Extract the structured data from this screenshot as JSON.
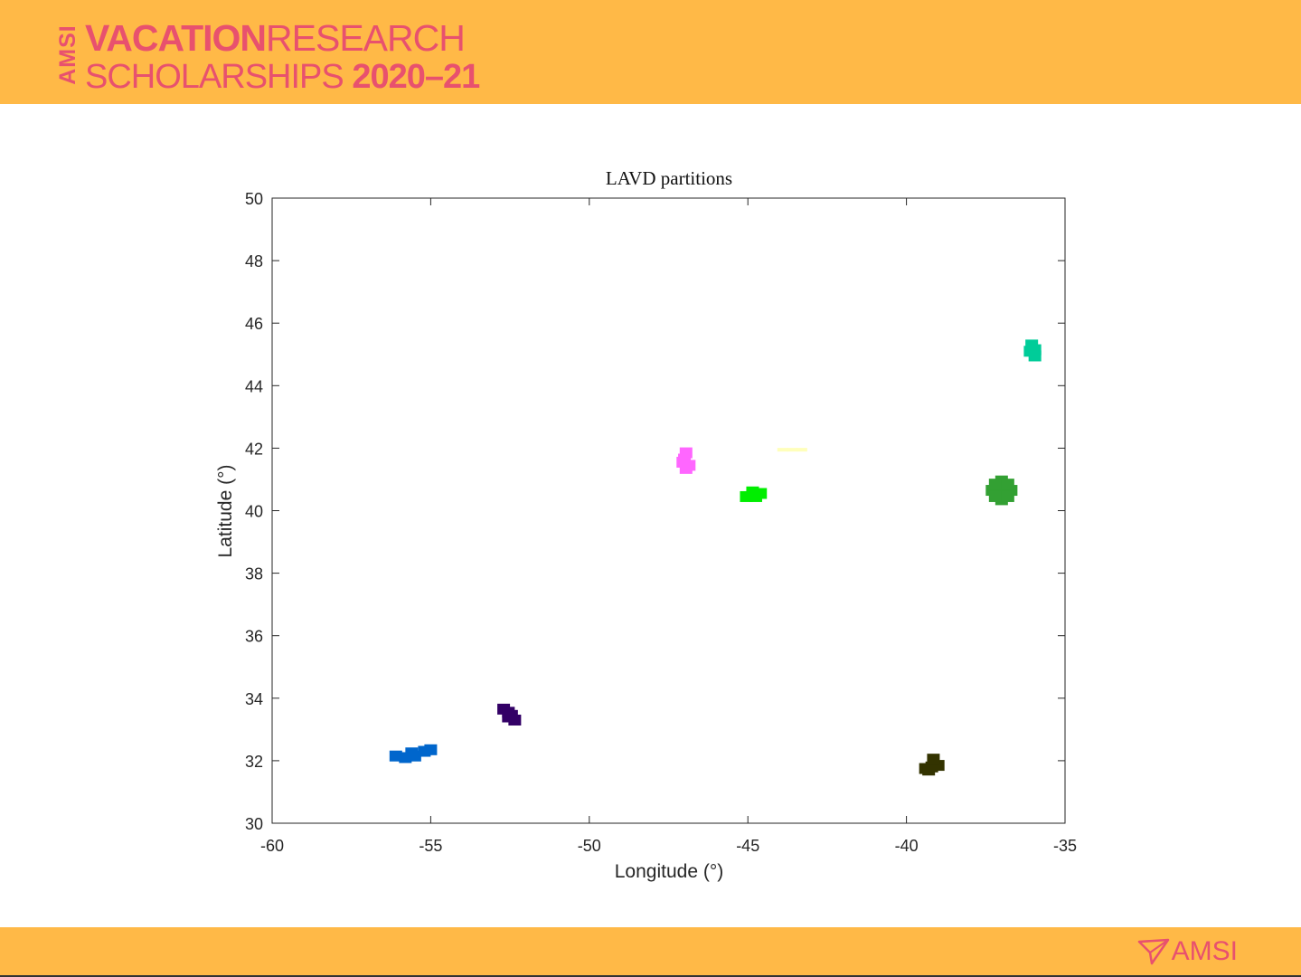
{
  "header": {
    "logo_amsi": "AMSI",
    "logo_word1": "VACATION",
    "logo_word2": "RESEARCH",
    "logo_word3": "SCHOLARSHIPS ",
    "logo_year": "2020–21",
    "brand_color": "#E8516E",
    "banner_color": "#FFB947"
  },
  "footer": {
    "logo_text": "AMSI",
    "logo_icon": "amsi-arrow-icon"
  },
  "chart_data": {
    "type": "scatter",
    "title": "LAVD partitions",
    "xlabel": "Longitude (°)",
    "ylabel": "Latitude (°)",
    "xlim": [
      -60,
      -35
    ],
    "ylim": [
      30,
      50
    ],
    "xticks": [
      -60,
      -55,
      -50,
      -45,
      -40,
      -35
    ],
    "yticks": [
      30,
      32,
      34,
      36,
      38,
      40,
      42,
      44,
      46,
      48,
      50
    ],
    "grid": false,
    "series": [
      {
        "color": "#0066CC",
        "points": [
          [
            -56.1,
            32.15
          ],
          [
            -55.8,
            32.1
          ],
          [
            -55.5,
            32.15
          ],
          [
            -55.2,
            32.3
          ],
          [
            -55.0,
            32.35
          ],
          [
            -55.6,
            32.25
          ]
        ]
      },
      {
        "color": "#330066",
        "points": [
          [
            -52.7,
            33.65
          ],
          [
            -52.55,
            33.55
          ],
          [
            -52.45,
            33.45
          ],
          [
            -52.35,
            33.3
          ],
          [
            -52.55,
            33.4
          ]
        ]
      },
      {
        "color": "#FF66FF",
        "points": [
          [
            -46.95,
            41.85
          ],
          [
            -47.0,
            41.65
          ],
          [
            -46.85,
            41.45
          ],
          [
            -46.95,
            41.35
          ],
          [
            -47.05,
            41.55
          ]
        ]
      },
      {
        "color": "#00EE00",
        "points": [
          [
            -45.05,
            40.45
          ],
          [
            -44.85,
            40.5
          ],
          [
            -44.6,
            40.55
          ],
          [
            -44.85,
            40.6
          ],
          [
            -44.75,
            40.45
          ]
        ]
      },
      {
        "color": "#FFFFBB",
        "points": [
          [
            -43.9,
            41.95
          ],
          [
            -43.6,
            41.95
          ],
          [
            -43.3,
            41.95
          ]
        ]
      },
      {
        "color": "#33A033",
        "points": [
          [
            -37.0,
            40.65
          ],
          [
            -37.3,
            40.65
          ],
          [
            -36.7,
            40.65
          ],
          [
            -37.0,
            40.95
          ],
          [
            -37.0,
            40.35
          ],
          [
            -37.2,
            40.85
          ],
          [
            -36.8,
            40.45
          ],
          [
            -37.2,
            40.45
          ],
          [
            -36.8,
            40.85
          ]
        ]
      },
      {
        "color": "#00CC99",
        "points": [
          [
            -36.05,
            45.3
          ],
          [
            -35.95,
            45.15
          ],
          [
            -36.1,
            45.1
          ],
          [
            -35.95,
            44.95
          ]
        ]
      },
      {
        "color": "#333300",
        "points": [
          [
            -39.4,
            31.75
          ],
          [
            -39.2,
            31.8
          ],
          [
            -39.0,
            31.85
          ],
          [
            -39.15,
            32.05
          ],
          [
            -39.3,
            31.7
          ]
        ]
      }
    ]
  }
}
